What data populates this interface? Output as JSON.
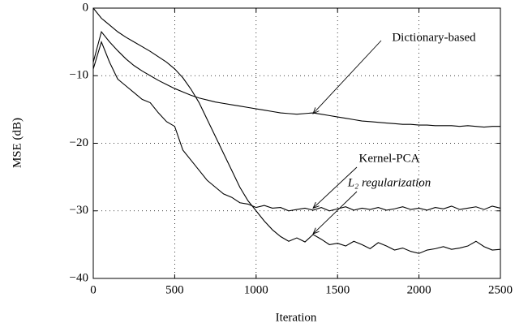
{
  "chart_data": {
    "type": "line",
    "xlabel": "Iteration",
    "ylabel": "MSE (dB)",
    "x": [
      0,
      50,
      100,
      150,
      200,
      250,
      300,
      350,
      400,
      450,
      500,
      550,
      600,
      650,
      700,
      750,
      800,
      850,
      900,
      950,
      1000,
      1050,
      1100,
      1150,
      1200,
      1250,
      1300,
      1350,
      1400,
      1450,
      1500,
      1550,
      1600,
      1650,
      1700,
      1750,
      1800,
      1850,
      1900,
      1950,
      2000,
      2050,
      2100,
      2150,
      2200,
      2250,
      2300,
      2350,
      2400,
      2450,
      2500
    ],
    "series": [
      {
        "name": "Dictionary-based",
        "color": "#000000",
        "values": [
          -8,
          -3.5,
          -5,
          -6.3,
          -7.5,
          -8.5,
          -9.3,
          -10,
          -10.7,
          -11.3,
          -11.9,
          -12.4,
          -12.9,
          -13.3,
          -13.6,
          -13.9,
          -14.1,
          -14.3,
          -14.5,
          -14.7,
          -14.9,
          -15.1,
          -15.3,
          -15.5,
          -15.6,
          -15.7,
          -15.6,
          -15.5,
          -15.7,
          -15.9,
          -16.1,
          -16.3,
          -16.5,
          -16.7,
          -16.8,
          -16.9,
          -17,
          -17.1,
          -17.2,
          -17.2,
          -17.3,
          -17.3,
          -17.4,
          -17.4,
          -17.4,
          -17.5,
          -17.4,
          -17.5,
          -17.6,
          -17.5,
          -17.5
        ]
      },
      {
        "name": "Kernel-PCA",
        "color": "#000000",
        "values": [
          -9,
          -5,
          -8,
          -10.5,
          -11.5,
          -12.5,
          -13.5,
          -14,
          -15.5,
          -16.8,
          -17.5,
          -21,
          -22.5,
          -24,
          -25.5,
          -26.5,
          -27.5,
          -28,
          -28.8,
          -29,
          -29.5,
          -29.2,
          -29.6,
          -29.5,
          -30,
          -29.8,
          -29.6,
          -29.9,
          -29.5,
          -30,
          -29.7,
          -29.4,
          -29.9,
          -29.6,
          -29.8,
          -29.5,
          -29.9,
          -29.7,
          -29.4,
          -29.8,
          -29.6,
          -29.9,
          -29.5,
          -29.7,
          -29.3,
          -29.8,
          -29.6,
          -29.4,
          -29.8,
          -29.3,
          -29.6
        ]
      },
      {
        "name": "L₂ regularization",
        "color": "#000000",
        "values": [
          0,
          -1.5,
          -2.5,
          -3.5,
          -4.3,
          -5,
          -5.7,
          -6.4,
          -7.2,
          -8,
          -9,
          -10.3,
          -12,
          -14,
          -16.5,
          -19,
          -21.5,
          -24,
          -26.5,
          -28.5,
          -30,
          -31.5,
          -32.8,
          -33.8,
          -34.5,
          -34,
          -34.6,
          -33.5,
          -34.2,
          -35,
          -34.8,
          -35.2,
          -34.5,
          -35,
          -35.6,
          -34.7,
          -35.2,
          -35.8,
          -35.5,
          -36,
          -36.3,
          -35.8,
          -35.6,
          -35.3,
          -35.7,
          -35.5,
          -35.2,
          -34.5,
          -35.3,
          -35.8,
          -35.7
        ]
      }
    ],
    "xlim": [
      0,
      2500
    ],
    "xticks": [
      0,
      500,
      1000,
      1500,
      2000,
      2500
    ],
    "ylim": [
      -40,
      0
    ],
    "yticks": [
      0,
      {
        "value": -10,
        "label": "−10"
      },
      {
        "value": -20,
        "label": "−20"
      },
      {
        "value": -30,
        "label": "−30"
      },
      {
        "value": -40,
        "label": "−40"
      }
    ],
    "grid": true
  }
}
